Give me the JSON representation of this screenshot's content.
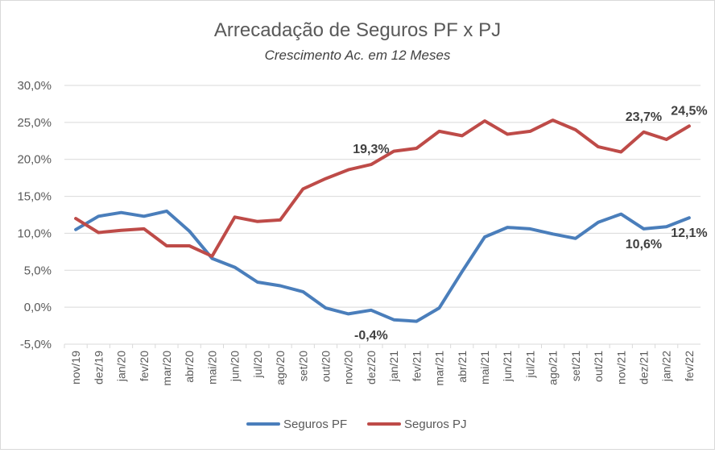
{
  "chart_data": {
    "type": "line",
    "title": "Arrecadação de Seguros PF x PJ",
    "subtitle": "Crescimento Ac. em 12 Meses",
    "xlabel": "",
    "ylabel": "",
    "ylim": [
      -5,
      30
    ],
    "ytick_step": 5,
    "ytick_labels": [
      "-5,0%",
      "0,0%",
      "5,0%",
      "10,0%",
      "15,0%",
      "20,0%",
      "25,0%",
      "30,0%"
    ],
    "grid": true,
    "legend_position": "bottom",
    "categories": [
      "nov/19",
      "dez/19",
      "jan/20",
      "fev/20",
      "mar/20",
      "abr/20",
      "mai/20",
      "jun/20",
      "jul/20",
      "ago/20",
      "set/20",
      "out/20",
      "nov/20",
      "dez/20",
      "jan/21",
      "fev/21",
      "mar/21",
      "abr/21",
      "mai/21",
      "jun/21",
      "jul/21",
      "ago/21",
      "set/21",
      "out/21",
      "nov/21",
      "dez/21",
      "jan/22",
      "fev/22"
    ],
    "series": [
      {
        "name": "Seguros PF",
        "color": "#4a7ebb",
        "values": [
          10.5,
          12.3,
          12.8,
          12.3,
          13.0,
          10.3,
          6.6,
          5.4,
          3.4,
          2.9,
          2.1,
          -0.1,
          -0.9,
          -0.4,
          -1.7,
          -1.9,
          -0.1,
          4.8,
          9.5,
          10.8,
          10.6,
          9.9,
          9.3,
          11.5,
          12.6,
          10.6,
          10.9,
          12.1
        ]
      },
      {
        "name": "Seguros PJ",
        "color": "#be4b48",
        "values": [
          12.0,
          10.1,
          10.4,
          10.6,
          8.3,
          8.3,
          6.9,
          12.2,
          11.6,
          11.8,
          16.0,
          17.4,
          18.6,
          19.3,
          21.1,
          21.5,
          23.8,
          23.2,
          25.2,
          23.4,
          23.8,
          25.3,
          24.0,
          21.7,
          21.0,
          23.7,
          22.7,
          24.5
        ]
      }
    ],
    "data_labels": [
      {
        "series": "Seguros PF",
        "category": "dez/20",
        "text": "-0,4%"
      },
      {
        "series": "Seguros PF",
        "category": "dez/21",
        "text": "10,6%"
      },
      {
        "series": "Seguros PF",
        "category": "fev/22",
        "text": "12,1%"
      },
      {
        "series": "Seguros PJ",
        "category": "dez/20",
        "text": "19,3%"
      },
      {
        "series": "Seguros PJ",
        "category": "dez/21",
        "text": "23,7%"
      },
      {
        "series": "Seguros PJ",
        "category": "fev/22",
        "text": "24,5%"
      }
    ]
  }
}
